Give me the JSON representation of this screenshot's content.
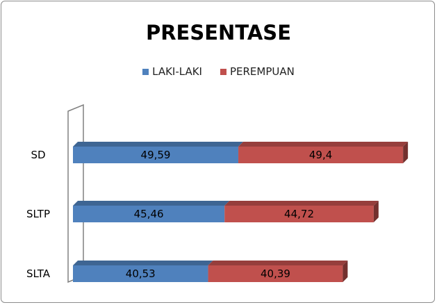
{
  "chart_data": {
    "type": "bar",
    "orientation": "horizontal",
    "stacked": true,
    "title": "PRESENTASE",
    "categories": [
      "SD",
      "SLTP",
      "SLTA"
    ],
    "series": [
      {
        "name": "LAKI-LAKI",
        "values": [
          49.59,
          45.46,
          40.53
        ],
        "labels": [
          "49,59",
          "45,46",
          "40,53"
        ],
        "color": "#4f81bd"
      },
      {
        "name": "PEREMPUAN",
        "values": [
          49.4,
          44.72,
          40.39
        ],
        "labels": [
          "49,4",
          "44,72",
          "40,39"
        ],
        "color": "#c0504d"
      }
    ],
    "xlim": [
      0,
      110
    ],
    "legend_position": "top",
    "grid": false,
    "style": "3d"
  }
}
